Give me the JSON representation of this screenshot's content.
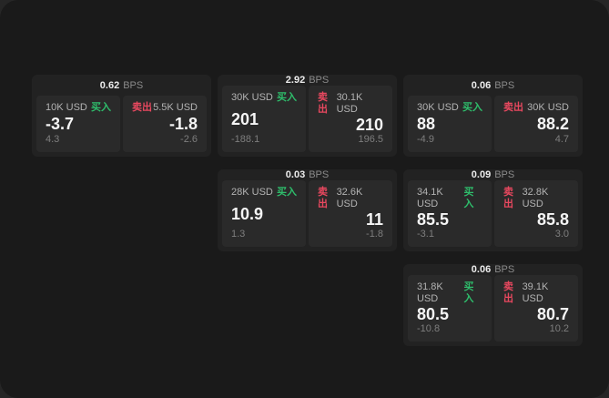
{
  "colors": {
    "buy_accent": "#2ebd6b",
    "sell_accent": "#e8485f",
    "window_bg": "#1a1a1a",
    "card_bg": "#222222",
    "panel_bg": "#2a2a2a"
  },
  "cards": [
    {
      "grid": {
        "row": 1,
        "col": 1
      },
      "spread": "0.62",
      "unit": "BPS",
      "buy": {
        "notional": "10K USD",
        "label": "买入",
        "price": "-3.7",
        "delta": "4.3"
      },
      "sell": {
        "label": "卖出",
        "notional": "5.5K USD",
        "price": "-1.8",
        "delta": "-2.6"
      }
    },
    {
      "grid": {
        "row": 1,
        "col": 2
      },
      "spread": "2.92",
      "unit": "BPS",
      "buy": {
        "notional": "30K USD",
        "label": "买入",
        "price": "201",
        "delta": "-188.1"
      },
      "sell": {
        "label": "卖出",
        "notional": "30.1K USD",
        "price": "210",
        "delta": "196.5"
      }
    },
    {
      "grid": {
        "row": 1,
        "col": 3
      },
      "spread": "0.06",
      "unit": "BPS",
      "buy": {
        "notional": "30K USD",
        "label": "买入",
        "price": "88",
        "delta": "-4.9"
      },
      "sell": {
        "label": "卖出",
        "notional": "30K USD",
        "price": "88.2",
        "delta": "4.7"
      }
    },
    {
      "grid": {
        "row": 2,
        "col": 2
      },
      "spread": "0.03",
      "unit": "BPS",
      "buy": {
        "notional": "28K USD",
        "label": "买入",
        "price": "10.9",
        "delta": "1.3"
      },
      "sell": {
        "label": "卖出",
        "notional": "32.6K USD",
        "price": "11",
        "delta": "-1.8"
      }
    },
    {
      "grid": {
        "row": 2,
        "col": 3
      },
      "spread": "0.09",
      "unit": "BPS",
      "buy": {
        "notional": "34.1K USD",
        "label": "买入",
        "price": "85.5",
        "delta": "-3.1"
      },
      "sell": {
        "label": "卖出",
        "notional": "32.8K USD",
        "price": "85.8",
        "delta": "3.0"
      }
    },
    {
      "grid": {
        "row": 3,
        "col": 3
      },
      "spread": "0.06",
      "unit": "BPS",
      "buy": {
        "notional": "31.8K USD",
        "label": "买入",
        "price": "80.5",
        "delta": "-10.8"
      },
      "sell": {
        "label": "卖出",
        "notional": "39.1K USD",
        "price": "80.7",
        "delta": "10.2"
      }
    }
  ]
}
